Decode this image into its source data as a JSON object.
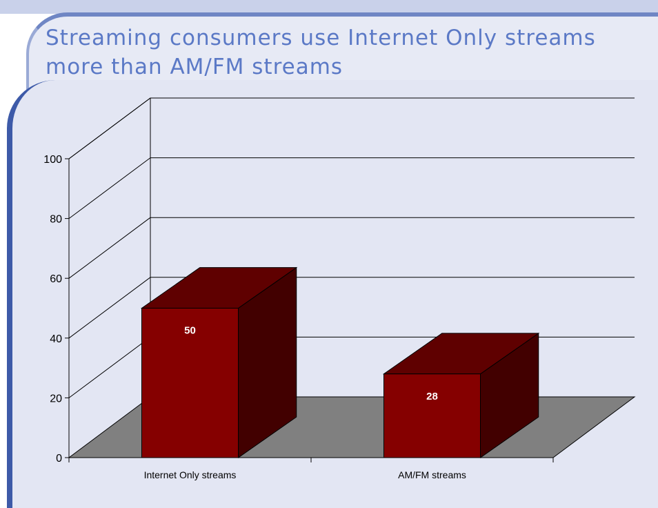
{
  "slide": {
    "title": "Streaming consumers use Internet Only streams more than AM/FM streams"
  },
  "colors": {
    "bar_front": "#850000",
    "bar_top": "#5f0000",
    "bar_side": "#420000",
    "floor": "#808080",
    "title": "#5b79c6"
  },
  "chart_data": {
    "type": "bar",
    "categories": [
      "Internet Only streams",
      "AM/FM streams"
    ],
    "values": [
      50,
      28
    ],
    "data_labels": [
      "50",
      "28"
    ],
    "ylim": [
      0,
      100
    ],
    "yticks": [
      "0",
      "20",
      "40",
      "60",
      "80",
      "100"
    ],
    "grid": true,
    "three_d": true,
    "title": "",
    "xlabel": "",
    "ylabel": ""
  }
}
